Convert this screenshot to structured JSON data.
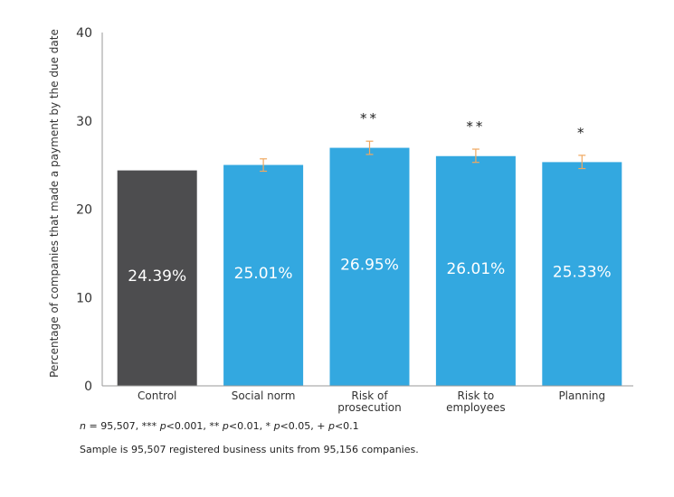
{
  "chart_data": {
    "type": "bar",
    "ylabel": "Percentage of companies that made a payment by the due date",
    "ylim": [
      0,
      40
    ],
    "yticks": [
      0,
      10,
      20,
      30,
      40
    ],
    "grid": false,
    "categories": [
      [
        "Control"
      ],
      [
        "Social norm"
      ],
      [
        "Risk of",
        "prosecution"
      ],
      [
        "Risk to",
        "employees"
      ],
      [
        "Planning"
      ]
    ],
    "values": [
      24.39,
      25.01,
      26.95,
      26.01,
      25.33
    ],
    "value_labels": [
      "24.39%",
      "25.01%",
      "26.95%",
      "26.01%",
      "25.33%"
    ],
    "error_bars": [
      null,
      [
        24.3,
        25.7
      ],
      [
        26.2,
        27.7
      ],
      [
        25.3,
        26.8
      ],
      [
        24.6,
        26.1
      ]
    ],
    "significance": [
      "",
      "",
      "**",
      "**",
      "*"
    ],
    "colors": [
      "#4d4d4f",
      "#33a8e0",
      "#33a8e0",
      "#33a8e0",
      "#33a8e0"
    ],
    "error_bar_color": "#f0a860"
  },
  "notes": {
    "n_label": "n",
    "n_text": " = 95,507,  *** ",
    "p1": "p",
    "t1": "<0.001, ** ",
    "p2": "p",
    "t2": "<0.01, * ",
    "p3": "p",
    "t3": "<0.05, + ",
    "p4": "p",
    "t4": "<0.1",
    "sample": "Sample is 95,507 registered business units from 95,156 companies."
  }
}
